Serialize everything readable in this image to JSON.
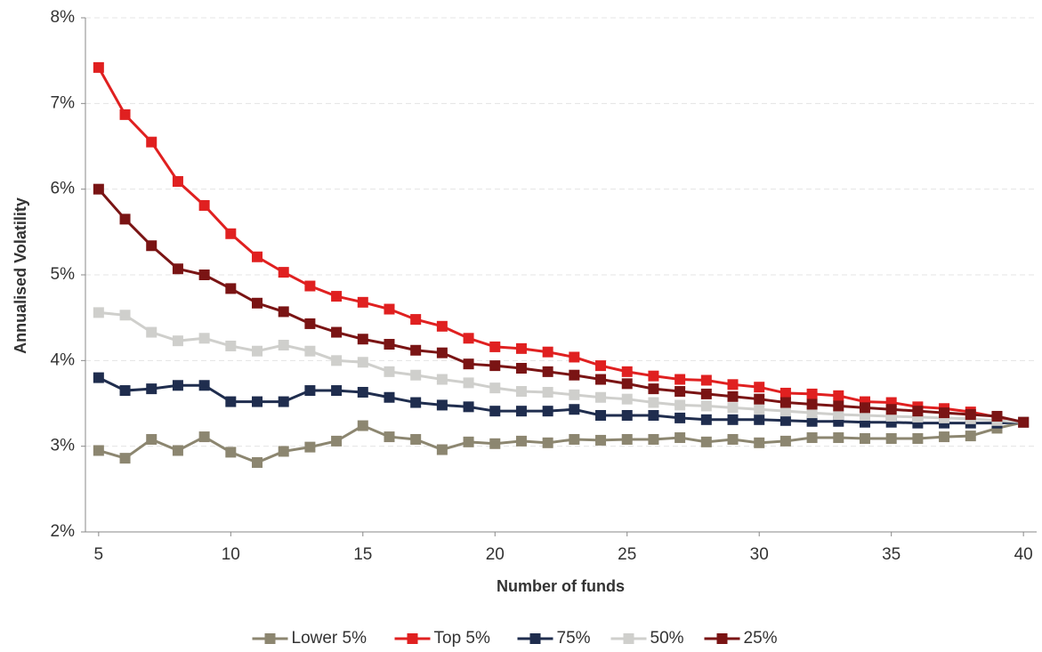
{
  "chart_data": {
    "type": "line",
    "x_label": "Number of funds",
    "y_label": "Annualised Volatility",
    "x": [
      5,
      6,
      7,
      8,
      9,
      10,
      11,
      12,
      13,
      14,
      15,
      16,
      17,
      18,
      19,
      20,
      21,
      22,
      23,
      24,
      25,
      26,
      27,
      28,
      29,
      30,
      31,
      32,
      33,
      34,
      35,
      36,
      37,
      38,
      39,
      40
    ],
    "xlim": [
      4.5,
      40.5
    ],
    "xticks": [
      5,
      10,
      15,
      20,
      25,
      30,
      35,
      40
    ],
    "ylim": [
      2,
      8
    ],
    "yticks": [
      {
        "value": 2,
        "label": "2%"
      },
      {
        "value": 3,
        "label": "3%"
      },
      {
        "value": 4,
        "label": "4%"
      },
      {
        "value": 5,
        "label": "5%"
      },
      {
        "value": 6,
        "label": "6%"
      },
      {
        "value": 7,
        "label": "7%"
      },
      {
        "value": 8,
        "label": "8%"
      }
    ],
    "grid": true,
    "legend": "bottom",
    "series": [
      {
        "name": "Lower 5%",
        "color": "#8c8670",
        "values": [
          2.95,
          2.86,
          3.08,
          2.95,
          3.11,
          2.93,
          2.81,
          2.94,
          2.99,
          3.06,
          3.24,
          3.11,
          3.08,
          2.96,
          3.05,
          3.03,
          3.06,
          3.04,
          3.08,
          3.07,
          3.08,
          3.08,
          3.1,
          3.05,
          3.08,
          3.04,
          3.06,
          3.1,
          3.1,
          3.09,
          3.09,
          3.09,
          3.11,
          3.12,
          3.21,
          3.28
        ]
      },
      {
        "name": "Top 5%",
        "color": "#e02020",
        "values": [
          7.42,
          6.87,
          6.55,
          6.09,
          5.81,
          5.48,
          5.21,
          5.03,
          4.87,
          4.75,
          4.68,
          4.6,
          4.48,
          4.4,
          4.26,
          4.16,
          4.14,
          4.1,
          4.04,
          3.94,
          3.87,
          3.82,
          3.78,
          3.77,
          3.72,
          3.69,
          3.62,
          3.61,
          3.59,
          3.52,
          3.51,
          3.46,
          3.44,
          3.4,
          3.34,
          3.28
        ]
      },
      {
        "name": "75%",
        "color": "#1f2d4e",
        "values": [
          3.8,
          3.65,
          3.67,
          3.71,
          3.71,
          3.52,
          3.52,
          3.52,
          3.65,
          3.65,
          3.63,
          3.57,
          3.51,
          3.48,
          3.46,
          3.41,
          3.41,
          3.41,
          3.43,
          3.36,
          3.36,
          3.36,
          3.33,
          3.31,
          3.31,
          3.31,
          3.3,
          3.29,
          3.29,
          3.28,
          3.28,
          3.27,
          3.27,
          3.27,
          3.27,
          3.28
        ]
      },
      {
        "name": "50%",
        "color": "#cfcfcc",
        "values": [
          4.56,
          4.53,
          4.33,
          4.23,
          4.26,
          4.17,
          4.11,
          4.18,
          4.11,
          4.0,
          3.98,
          3.87,
          3.83,
          3.78,
          3.74,
          3.68,
          3.64,
          3.63,
          3.6,
          3.57,
          3.55,
          3.51,
          3.48,
          3.47,
          3.45,
          3.43,
          3.41,
          3.39,
          3.37,
          3.36,
          3.35,
          3.34,
          3.33,
          3.32,
          3.3,
          3.28
        ]
      },
      {
        "name": "25%",
        "color": "#7a1414",
        "values": [
          6.0,
          5.65,
          5.34,
          5.07,
          5.0,
          4.84,
          4.67,
          4.57,
          4.43,
          4.33,
          4.25,
          4.19,
          4.12,
          4.09,
          3.96,
          3.94,
          3.91,
          3.87,
          3.83,
          3.78,
          3.73,
          3.67,
          3.64,
          3.61,
          3.58,
          3.55,
          3.51,
          3.49,
          3.47,
          3.45,
          3.43,
          3.41,
          3.39,
          3.37,
          3.35,
          3.28
        ]
      }
    ]
  }
}
